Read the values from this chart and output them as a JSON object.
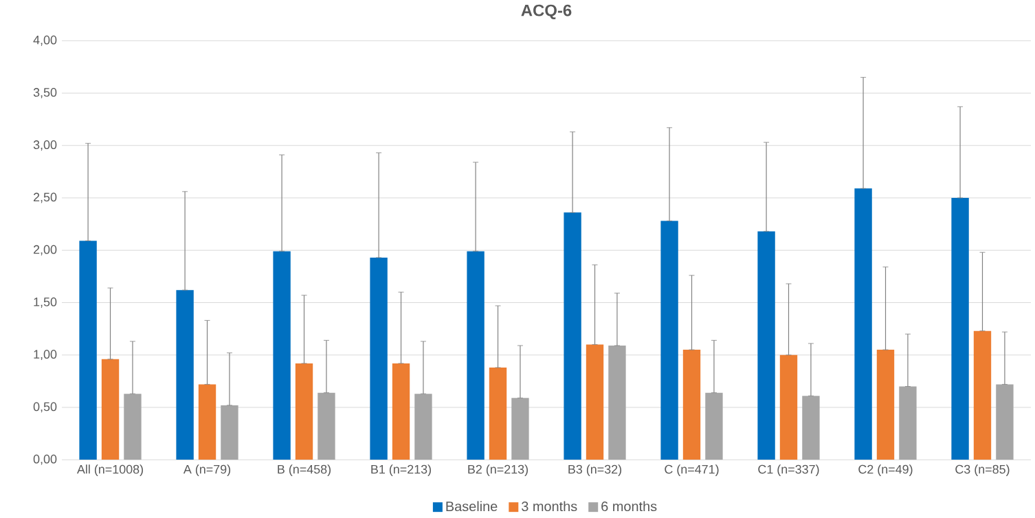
{
  "chart_data": {
    "type": "bar",
    "title": "ACQ-6",
    "categories": [
      "All (n=1008)",
      "A (n=79)",
      "B (n=458)",
      "B1 (n=213)",
      "B2 (n=213)",
      "B3 (n=32)",
      "C (n=471)",
      "C1 (n=337)",
      "C2 (n=49)",
      "C3 (n=85)"
    ],
    "series": [
      {
        "name": "Baseline",
        "color": "#0070c0",
        "values": [
          2.09,
          1.62,
          1.99,
          1.93,
          1.99,
          2.36,
          2.28,
          2.18,
          2.59,
          2.5
        ],
        "errors": [
          [
            2.09,
            3.02
          ],
          [
            1.62,
            2.56
          ],
          [
            1.99,
            2.91
          ],
          [
            1.93,
            2.93
          ],
          [
            1.99,
            2.84
          ],
          [
            2.36,
            3.13
          ],
          [
            2.28,
            3.17
          ],
          [
            2.18,
            3.03
          ],
          [
            2.59,
            3.65
          ],
          [
            2.5,
            3.37
          ]
        ]
      },
      {
        "name": "3 months",
        "color": "#ed7d31",
        "values": [
          0.96,
          0.72,
          0.92,
          0.92,
          0.88,
          1.1,
          1.05,
          1.0,
          1.05,
          1.23
        ],
        "errors": [
          [
            0.96,
            1.64
          ],
          [
            0.72,
            1.33
          ],
          [
            0.92,
            1.57
          ],
          [
            0.92,
            1.6
          ],
          [
            0.88,
            1.47
          ],
          [
            1.1,
            1.86
          ],
          [
            1.05,
            1.76
          ],
          [
            1.0,
            1.68
          ],
          [
            1.05,
            1.84
          ],
          [
            1.23,
            1.98
          ]
        ]
      },
      {
        "name": "6 months",
        "color": "#a5a5a5",
        "values": [
          0.63,
          0.52,
          0.64,
          0.63,
          0.59,
          1.09,
          0.64,
          0.61,
          0.7,
          0.72
        ],
        "errors": [
          [
            0.63,
            1.13
          ],
          [
            0.52,
            1.02
          ],
          [
            0.64,
            1.14
          ],
          [
            0.63,
            1.13
          ],
          [
            0.59,
            1.09
          ],
          [
            1.09,
            1.59
          ],
          [
            0.64,
            1.14
          ],
          [
            0.61,
            1.11
          ],
          [
            0.7,
            1.2
          ],
          [
            0.72,
            1.22
          ]
        ]
      }
    ],
    "ylim": [
      0,
      4
    ],
    "yticks": [
      {
        "value": 0,
        "label": "0,00"
      },
      {
        "value": 0.5,
        "label": "0,50"
      },
      {
        "value": 1,
        "label": "1,00"
      },
      {
        "value": 1.5,
        "label": "1,50"
      },
      {
        "value": 2,
        "label": "2,00"
      },
      {
        "value": 2.5,
        "label": "2,50"
      },
      {
        "value": 3,
        "label": "3,00"
      },
      {
        "value": 3.5,
        "label": "3,50"
      },
      {
        "value": 4,
        "label": "4,00"
      }
    ],
    "grid": "y",
    "legend": "bottom"
  }
}
